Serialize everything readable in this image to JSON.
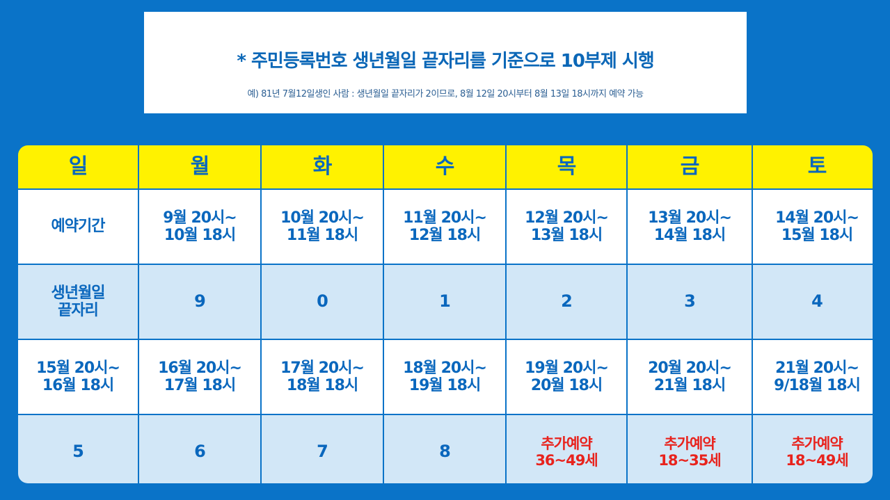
{
  "notice": {
    "title": "* 주민등록번호 생년월일 끝자리를 기준으로 10부제 시행",
    "example": "예) 81년 7월12일생인 사람 : 생년월일 끝자리가 2이므로, 8월 12일 20시부터 8월 13일 18시까지 예약 가능"
  },
  "colors": {
    "background": "#0a73c8",
    "header_fill": "#fff200",
    "text_blue": "#0a67bd",
    "row_light_blue": "#d2e7f7",
    "extra_red": "#e8231d"
  },
  "schedule": {
    "days": [
      "일",
      "월",
      "화",
      "수",
      "목",
      "금",
      "토"
    ],
    "row1_label": "예약기간",
    "row1_periods": [
      [
        "9월 20시~",
        "10월 18시"
      ],
      [
        "10월 20시~",
        "11월 18시"
      ],
      [
        "11월 20시~",
        "12월 18시"
      ],
      [
        "12월 20시~",
        "13월 18시"
      ],
      [
        "13월 20시~",
        "14월 18시"
      ],
      [
        "14월 20시~",
        "15월 18시"
      ]
    ],
    "row2_label": [
      "생년월일",
      "끝자리"
    ],
    "row2_digits": [
      "9",
      "0",
      "1",
      "2",
      "3",
      "4"
    ],
    "row3_periods": [
      [
        "15월 20시~",
        "16월 18시"
      ],
      [
        "16월 20시~",
        "17월 18시"
      ],
      [
        "17월 20시~",
        "18월 18시"
      ],
      [
        "18월 20시~",
        "19월 18시"
      ],
      [
        "19월 20시~",
        "20월 18시"
      ],
      [
        "20월 20시~",
        "21월 18시"
      ],
      [
        "21월 20시~",
        "9/18월 18시"
      ]
    ],
    "row4_digits": [
      "5",
      "6",
      "7",
      "8"
    ],
    "row4_extra": [
      [
        "추가예약",
        "36~49세"
      ],
      [
        "추가예약",
        "18~35세"
      ],
      [
        "추가예약",
        "18~49세"
      ]
    ]
  }
}
